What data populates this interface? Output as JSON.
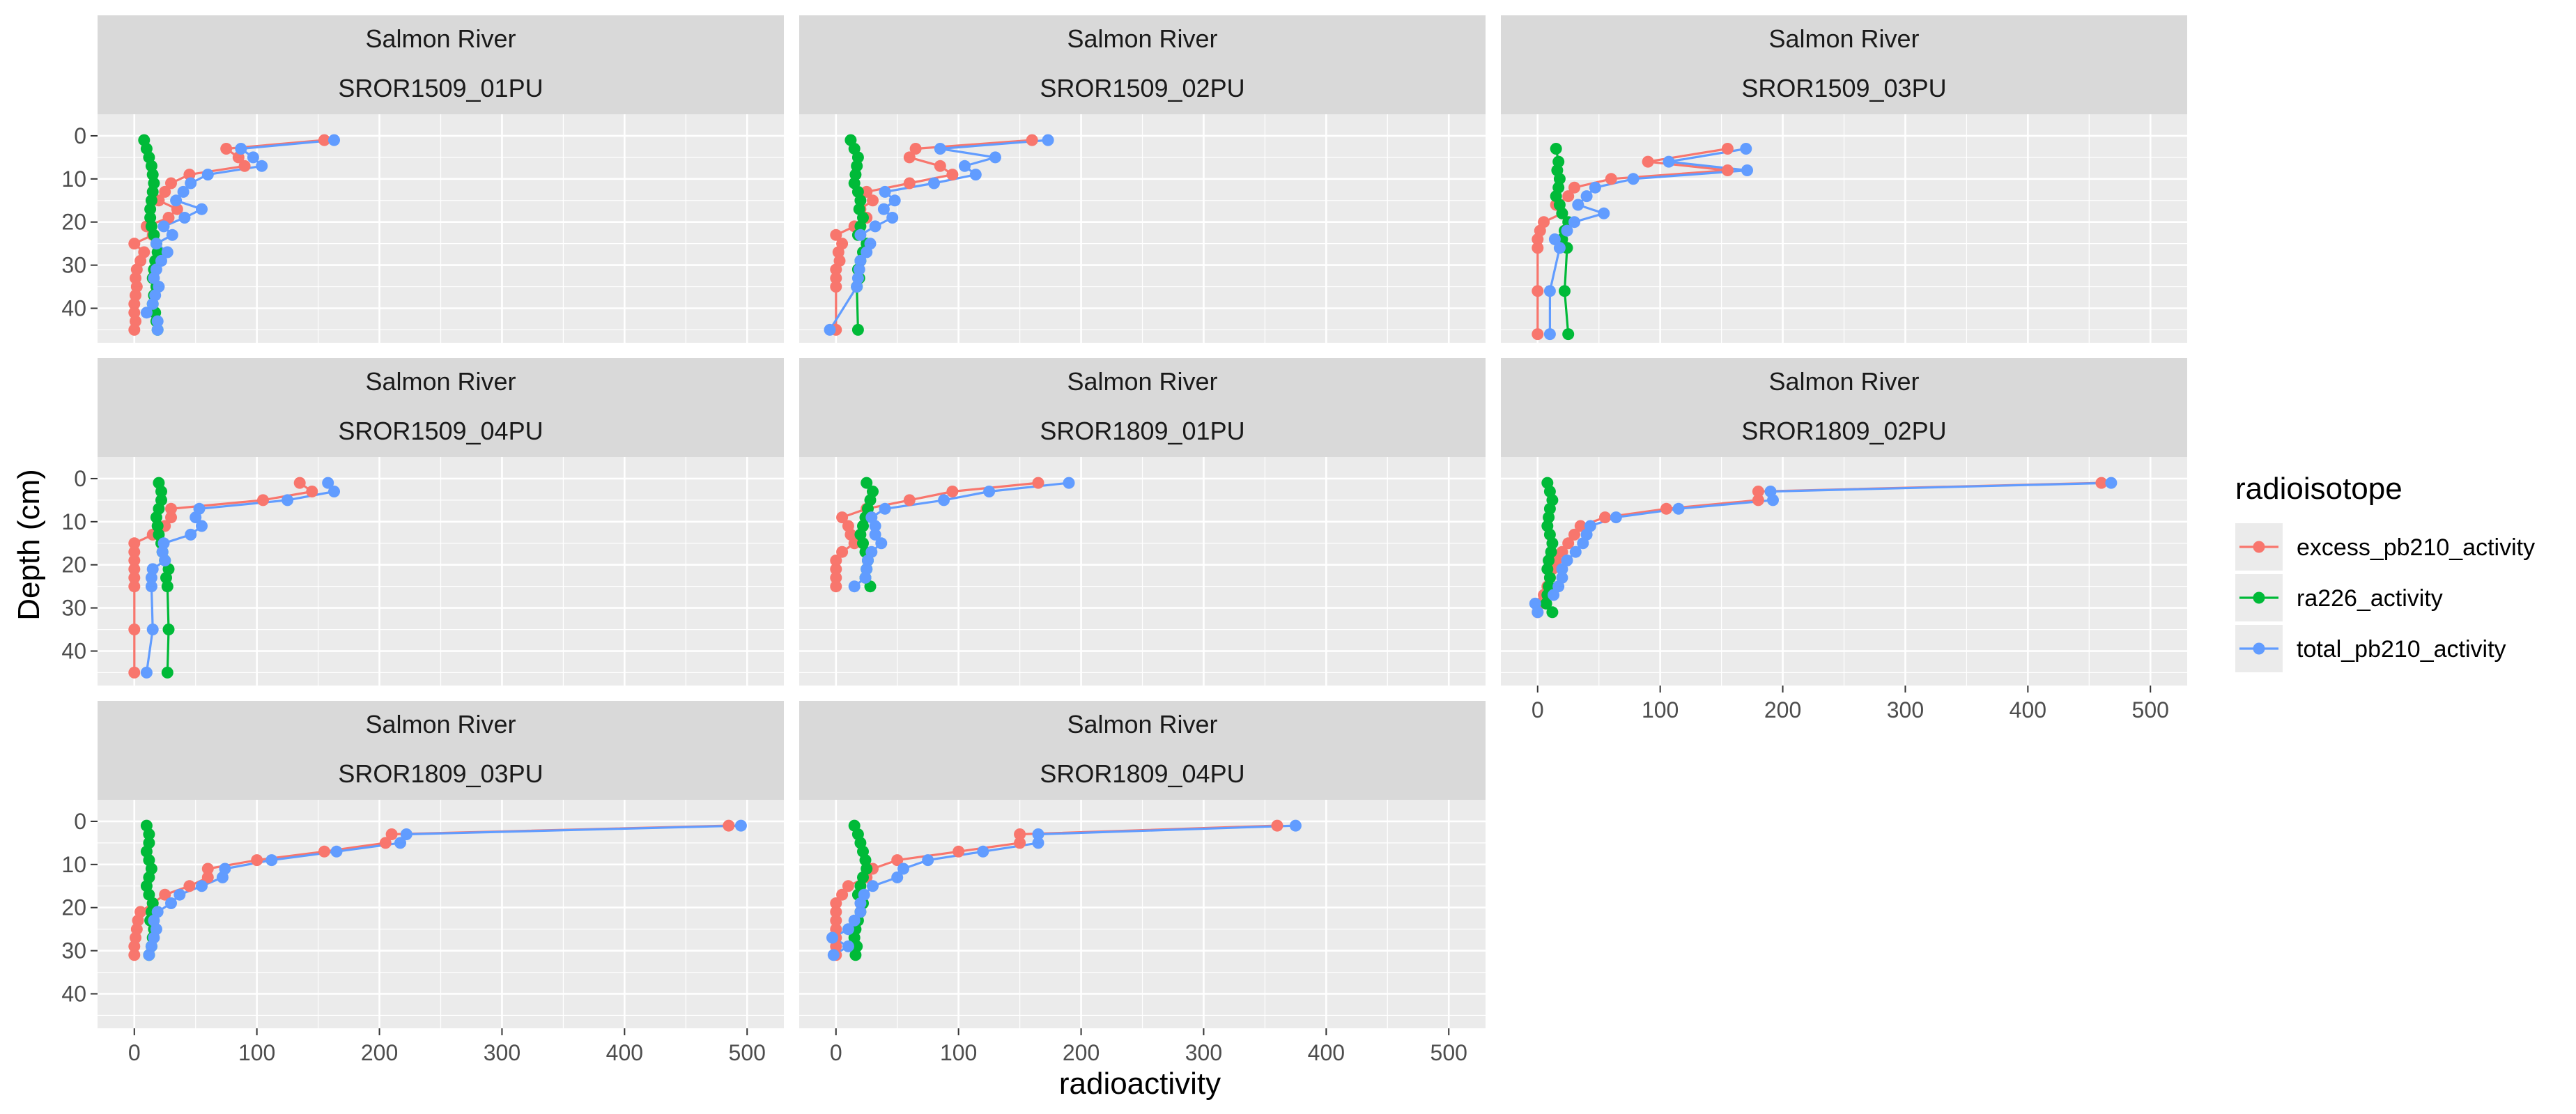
{
  "chart_data": {
    "type": "line",
    "xlabel": "radioactivity",
    "ylabel": "Depth (cm)",
    "x_range": [
      -30,
      530
    ],
    "y_range": [
      48,
      -5
    ],
    "y_reversed": true,
    "x_ticks": [
      0,
      100,
      200,
      300,
      400,
      500
    ],
    "y_ticks": [
      0,
      10,
      20,
      30,
      40
    ],
    "x_tick_labels": [
      "0",
      "100",
      "200",
      "300",
      "400",
      "500"
    ],
    "y_tick_labels": [
      "0",
      "10",
      "20",
      "30",
      "40"
    ],
    "legend": {
      "title": "radioisotope",
      "position": "right"
    },
    "series_styles": [
      {
        "name": "excess_pb210_activity",
        "color": "#F8766D"
      },
      {
        "name": "ra226_activity",
        "color": "#00BA38"
      },
      {
        "name": "total_pb210_activity",
        "color": "#619CFF"
      }
    ],
    "grid": true,
    "panels": [
      {
        "strip1": "Salmon River",
        "strip2": "SROR1509_01PU",
        "series": [
          {
            "name": "excess_pb210_activity",
            "y": [
              1,
              3,
              5,
              7,
              9,
              11,
              13,
              15,
              17,
              19,
              21,
              23,
              25,
              27,
              29,
              31,
              33,
              35,
              37,
              39,
              41,
              43,
              45
            ],
            "x": [
              155,
              75,
              85,
              90,
              45,
              30,
              25,
              20,
              35,
              28,
              10,
              15,
              0,
              8,
              5,
              2,
              1,
              2,
              1,
              0,
              0,
              1,
              0
            ]
          },
          {
            "name": "ra226_activity",
            "y": [
              1,
              3,
              5,
              7,
              9,
              11,
              13,
              15,
              17,
              19,
              21,
              23,
              25,
              27,
              29,
              31,
              33,
              35,
              37,
              39,
              41,
              43,
              45
            ],
            "x": [
              8,
              10,
              12,
              14,
              15,
              16,
              15,
              14,
              13,
              13,
              14,
              16,
              18,
              19,
              17,
              16,
              15,
              18,
              16,
              15,
              17,
              18,
              19
            ]
          },
          {
            "name": "total_pb210_activity",
            "y": [
              1,
              3,
              5,
              7,
              9,
              11,
              13,
              15,
              17,
              19,
              21,
              23,
              25,
              27,
              29,
              31,
              33,
              35,
              37,
              39,
              41,
              43,
              45
            ],
            "x": [
              163,
              87,
              97,
              104,
              60,
              46,
              40,
              34,
              55,
              41,
              24,
              31,
              18,
              27,
              22,
              18,
              16,
              20,
              17,
              15,
              10,
              19,
              19
            ]
          }
        ]
      },
      {
        "strip1": "Salmon River",
        "strip2": "SROR1509_02PU",
        "series": [
          {
            "name": "excess_pb210_activity",
            "y": [
              1,
              3,
              5,
              7,
              9,
              11,
              13,
              15,
              17,
              19,
              21,
              23,
              25,
              27,
              29,
              31,
              33,
              35,
              45
            ],
            "x": [
              160,
              65,
              60,
              85,
              95,
              60,
              25,
              30,
              20,
              25,
              15,
              0,
              5,
              2,
              3,
              0,
              0,
              0,
              0
            ]
          },
          {
            "name": "ra226_activity",
            "y": [
              1,
              3,
              5,
              7,
              9,
              11,
              13,
              15,
              17,
              19,
              21,
              23,
              25,
              27,
              29,
              31,
              33,
              35,
              45
            ],
            "x": [
              12,
              15,
              18,
              17,
              16,
              15,
              18,
              20,
              19,
              22,
              20,
              18,
              25,
              22,
              20,
              18,
              19,
              17,
              18
            ]
          },
          {
            "name": "total_pb210_activity",
            "y": [
              1,
              3,
              5,
              7,
              9,
              11,
              13,
              15,
              17,
              19,
              21,
              23,
              25,
              27,
              29,
              31,
              33,
              35,
              45
            ],
            "x": [
              173,
              85,
              130,
              105,
              114,
              80,
              40,
              48,
              39,
              46,
              32,
              20,
              28,
              25,
              20,
              19,
              18,
              17,
              -5
            ]
          }
        ]
      },
      {
        "strip1": "Salmon River",
        "strip2": "SROR1509_03PU",
        "series": [
          {
            "name": "excess_pb210_activity",
            "y": [
              3,
              6,
              8,
              10,
              12,
              14,
              16,
              18,
              20,
              22,
              24,
              26,
              36,
              46
            ],
            "x": [
              155,
              90,
              155,
              60,
              30,
              25,
              15,
              20,
              5,
              2,
              0,
              0,
              0,
              0
            ]
          },
          {
            "name": "ra226_activity",
            "y": [
              3,
              6,
              8,
              10,
              12,
              14,
              16,
              18,
              20,
              22,
              24,
              26,
              36,
              46
            ],
            "x": [
              15,
              17,
              16,
              18,
              17,
              15,
              18,
              20,
              25,
              22,
              20,
              24,
              22,
              25
            ]
          },
          {
            "name": "total_pb210_activity",
            "y": [
              3,
              6,
              8,
              10,
              12,
              14,
              16,
              18,
              20,
              22,
              24,
              26,
              36,
              46
            ],
            "x": [
              170,
              107,
              171,
              78,
              47,
              40,
              33,
              54,
              30,
              24,
              14,
              18,
              10,
              10
            ]
          }
        ]
      },
      {
        "strip1": "Salmon River",
        "strip2": "SROR1509_04PU",
        "series": [
          {
            "name": "excess_pb210_activity",
            "y": [
              1,
              3,
              5,
              7,
              9,
              11,
              13,
              15,
              17,
              19,
              21,
              23,
              25,
              35,
              45
            ],
            "x": [
              135,
              145,
              105,
              30,
              30,
              25,
              15,
              0,
              0,
              0,
              0,
              0,
              0,
              0,
              0
            ]
          },
          {
            "name": "ra226_activity",
            "y": [
              1,
              3,
              5,
              7,
              9,
              11,
              13,
              15,
              17,
              19,
              21,
              23,
              25,
              35,
              45
            ],
            "x": [
              20,
              22,
              22,
              20,
              18,
              19,
              20,
              22,
              23,
              25,
              28,
              26,
              27,
              28,
              27
            ]
          },
          {
            "name": "total_pb210_activity",
            "y": [
              1,
              3,
              5,
              7,
              9,
              11,
              13,
              15,
              17,
              19,
              21,
              23,
              25,
              35,
              45
            ],
            "x": [
              158,
              163,
              125,
              53,
              50,
              55,
              46,
              24,
              23,
              25,
              15,
              14,
              14,
              15,
              10
            ]
          }
        ]
      },
      {
        "strip1": "Salmon River",
        "strip2": "SROR1809_01PU",
        "series": [
          {
            "name": "excess_pb210_activity",
            "y": [
              1,
              3,
              5,
              7,
              9,
              11,
              13,
              15,
              17,
              19,
              21,
              23,
              25
            ],
            "x": [
              165,
              95,
              60,
              25,
              5,
              10,
              12,
              15,
              5,
              0,
              0,
              0,
              0
            ]
          },
          {
            "name": "ra226_activity",
            "y": [
              1,
              3,
              5,
              7,
              9,
              11,
              13,
              15,
              17,
              19,
              21,
              23,
              25
            ],
            "x": [
              25,
              30,
              28,
              26,
              24,
              22,
              20,
              22,
              24,
              26,
              25,
              24,
              28
            ]
          },
          {
            "name": "total_pb210_activity",
            "y": [
              1,
              3,
              5,
              7,
              9,
              11,
              13,
              15,
              17,
              19,
              21,
              23,
              25
            ],
            "x": [
              190,
              125,
              88,
              40,
              29,
              32,
              32,
              37,
              29,
              26,
              25,
              24,
              15
            ]
          }
        ]
      },
      {
        "strip1": "Salmon River",
        "strip2": "SROR1809_02PU",
        "series": [
          {
            "name": "excess_pb210_activity",
            "y": [
              1,
              3,
              5,
              7,
              9,
              11,
              13,
              15,
              17,
              19,
              21,
              23,
              25,
              27,
              29,
              31
            ],
            "x": [
              460,
              180,
              180,
              105,
              55,
              35,
              30,
              25,
              20,
              15,
              12,
              10,
              8,
              5,
              2,
              0
            ]
          },
          {
            "name": "ra226_activity",
            "y": [
              1,
              3,
              5,
              7,
              9,
              11,
              13,
              15,
              17,
              19,
              21,
              23,
              25,
              27,
              29,
              31
            ],
            "x": [
              8,
              10,
              12,
              10,
              9,
              8,
              10,
              12,
              11,
              9,
              8,
              10,
              9,
              8,
              7,
              12
            ]
          },
          {
            "name": "total_pb210_activity",
            "y": [
              1,
              3,
              5,
              7,
              9,
              11,
              13,
              15,
              17,
              19,
              21,
              23,
              25,
              27,
              29,
              31
            ],
            "x": [
              468,
              190,
              192,
              115,
              64,
              43,
              40,
              37,
              31,
              24,
              20,
              20,
              17,
              13,
              -2,
              0
            ]
          }
        ]
      },
      {
        "strip1": "Salmon River",
        "strip2": "SROR1809_03PU",
        "series": [
          {
            "name": "excess_pb210_activity",
            "y": [
              1,
              3,
              5,
              7,
              9,
              11,
              13,
              15,
              17,
              19,
              21,
              23,
              25,
              27,
              29,
              31
            ],
            "x": [
              485,
              210,
              205,
              155,
              100,
              60,
              60,
              45,
              25,
              15,
              5,
              3,
              2,
              1,
              0,
              0
            ]
          },
          {
            "name": "ra226_activity",
            "y": [
              1,
              3,
              5,
              7,
              9,
              11,
              13,
              15,
              17,
              19,
              21,
              23,
              25,
              27,
              29,
              31
            ],
            "x": [
              10,
              12,
              12,
              10,
              12,
              14,
              12,
              10,
              12,
              15,
              14,
              13,
              16,
              15,
              14,
              12
            ]
          },
          {
            "name": "total_pb210_activity",
            "y": [
              1,
              3,
              5,
              7,
              9,
              11,
              13,
              15,
              17,
              19,
              21,
              23,
              25,
              27,
              29,
              31
            ],
            "x": [
              495,
              222,
              217,
              165,
              112,
              74,
              72,
              55,
              37,
              30,
              19,
              16,
              18,
              16,
              14,
              12
            ]
          }
        ]
      },
      {
        "strip1": "Salmon River",
        "strip2": "SROR1809_04PU",
        "series": [
          {
            "name": "excess_pb210_activity",
            "y": [
              1,
              3,
              5,
              7,
              9,
              11,
              13,
              15,
              17,
              19,
              21,
              23,
              25,
              27,
              29,
              31
            ],
            "x": [
              360,
              150,
              150,
              100,
              50,
              30,
              25,
              10,
              5,
              0,
              0,
              0,
              0,
              0,
              0,
              0
            ]
          },
          {
            "name": "ra226_activity",
            "y": [
              1,
              3,
              5,
              7,
              9,
              11,
              13,
              15,
              17,
              19,
              21,
              23,
              25,
              27,
              29,
              31
            ],
            "x": [
              15,
              18,
              20,
              22,
              24,
              25,
              22,
              20,
              18,
              22,
              20,
              18,
              16,
              15,
              17,
              16
            ]
          },
          {
            "name": "total_pb210_activity",
            "y": [
              1,
              3,
              5,
              7,
              9,
              11,
              13,
              15,
              17,
              19,
              21,
              23,
              25,
              27,
              29,
              31
            ],
            "x": [
              375,
              165,
              165,
              120,
              75,
              55,
              50,
              30,
              23,
              20,
              20,
              15,
              10,
              -3,
              10,
              -2
            ]
          }
        ]
      }
    ]
  }
}
